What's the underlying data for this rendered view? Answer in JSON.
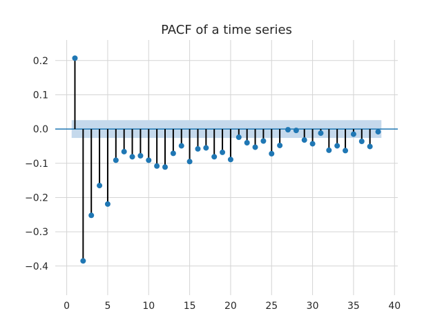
{
  "chart_data": {
    "type": "scatter",
    "title": "PACF of a time series",
    "xlabel": "",
    "ylabel": "",
    "xlim": [
      -1.4,
      40.4
    ],
    "ylim": [
      -0.485,
      0.26
    ],
    "x_ticks": [
      0,
      5,
      10,
      15,
      20,
      25,
      30,
      35,
      40
    ],
    "x_tick_labels": [
      "0",
      "5",
      "10",
      "15",
      "20",
      "25",
      "30",
      "35",
      "40"
    ],
    "y_ticks": [
      0.2,
      0.1,
      0.0,
      -0.1,
      -0.2,
      -0.3,
      -0.4
    ],
    "y_tick_labels": [
      "0.2",
      "0.1",
      "0.0",
      "−0.1",
      "−0.2",
      "−0.3",
      "−0.4"
    ],
    "grid": true,
    "confidence_band": {
      "x_range": [
        0.6,
        38.4
      ],
      "lower": -0.026,
      "upper": 0.026,
      "color": "#c5d9ec"
    },
    "marker_color": "#1f77b4",
    "stem_color": "#000000",
    "zero_line_color": "#1f77b4",
    "series": [
      {
        "x": [
          1,
          2,
          3,
          4,
          5,
          6,
          7,
          8,
          9,
          10,
          11,
          12,
          13,
          14,
          15,
          16,
          17,
          18,
          19,
          20,
          21,
          22,
          23,
          24,
          25,
          26,
          27,
          28,
          29,
          30,
          31,
          32,
          33,
          34,
          35,
          36,
          37,
          38
        ],
        "values": [
          0.207,
          -0.385,
          -0.252,
          -0.165,
          -0.219,
          -0.091,
          -0.066,
          -0.081,
          -0.078,
          -0.091,
          -0.108,
          -0.111,
          -0.071,
          -0.049,
          -0.095,
          -0.058,
          -0.055,
          -0.081,
          -0.068,
          -0.089,
          -0.024,
          -0.04,
          -0.053,
          -0.035,
          -0.072,
          -0.048,
          -0.002,
          -0.004,
          -0.032,
          -0.043,
          -0.012,
          -0.062,
          -0.049,
          -0.063,
          -0.015,
          -0.036,
          -0.051,
          -0.008
        ]
      }
    ]
  }
}
